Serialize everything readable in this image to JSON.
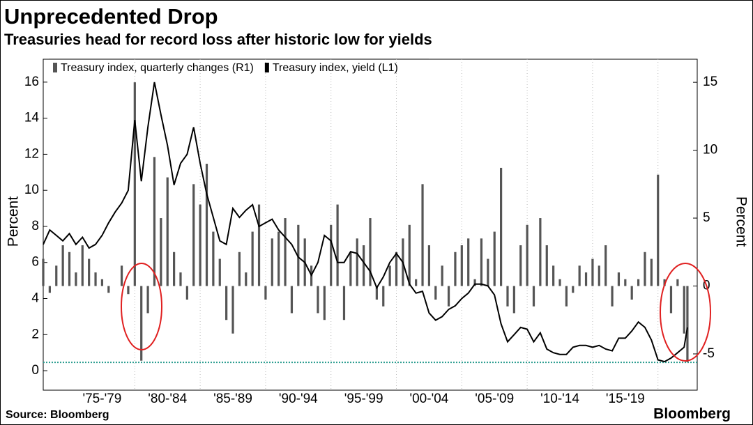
{
  "chart_data": {
    "type": "bar-line",
    "title": "Unprecedented Drop",
    "subtitle": "Treasuries head for record loss after historic low for yields",
    "source": "Source: Bloomberg",
    "brand": "Bloomberg",
    "ylabel": "Percent",
    "y2label": "Percent",
    "x": [
      1973,
      1973.5,
      1974,
      1974.5,
      1975,
      1975.5,
      1976,
      1976.5,
      1977,
      1977.5,
      1978,
      1978.5,
      1979,
      1979.5,
      1980,
      1980.5,
      1981,
      1981.5,
      1982,
      1982.5,
      1983,
      1983.5,
      1984,
      1984.5,
      1985,
      1985.5,
      1986,
      1986.5,
      1987,
      1987.5,
      1988,
      1988.5,
      1989,
      1989.5,
      1990,
      1990.5,
      1991,
      1991.5,
      1992,
      1992.5,
      1993,
      1993.5,
      1994,
      1994.5,
      1995,
      1995.5,
      1996,
      1996.5,
      1997,
      1997.5,
      1998,
      1998.5,
      1999,
      1999.5,
      2000,
      2000.5,
      2001,
      2001.5,
      2002,
      2002.5,
      2003,
      2003.5,
      2004,
      2004.5,
      2005,
      2005.5,
      2006,
      2006.5,
      2007,
      2007.5,
      2008,
      2008.5,
      2009,
      2009.5,
      2010,
      2010.5,
      2011,
      2011.5,
      2012,
      2012.5,
      2013,
      2013.5,
      2014,
      2014.5,
      2015,
      2015.5,
      2016,
      2016.5,
      2017,
      2017.5,
      2018,
      2018.5,
      2019,
      2019.5,
      2020,
      2020.5,
      2021,
      2021.5,
      2022,
      2022.25
    ],
    "series": [
      {
        "name": "Treasury index, quarterly changes (R1)",
        "color": "#555555",
        "axis": "y2",
        "kind": "bar",
        "values": [
          2.0,
          -0.5,
          1.5,
          3.0,
          2.5,
          1.0,
          3.0,
          2.0,
          1.0,
          0.5,
          -0.5,
          0.0,
          1.5,
          -0.6,
          15.0,
          -5.5,
          -2.0,
          9.5,
          5.0,
          8.0,
          2.5,
          1.0,
          -1.0,
          7.5,
          6.0,
          9.0,
          4.0,
          2.0,
          -2.5,
          -3.5,
          2.5,
          1.0,
          4.0,
          6.0,
          -1.0,
          3.5,
          4.0,
          5.0,
          -2.0,
          4.5,
          3.5,
          1.5,
          -2.0,
          -2.5,
          4.5,
          6.0,
          -2.5,
          2.5,
          3.5,
          3.0,
          5.0,
          -1.0,
          -1.5,
          1.5,
          2.5,
          3.5,
          4.5,
          0.5,
          7.5,
          3.0,
          -1.0,
          1.5,
          -1.5,
          2.5,
          3.0,
          3.5,
          0.5,
          3.5,
          2.0,
          4.0,
          8.7,
          -1.5,
          -2.0,
          3.0,
          4.5,
          -1.5,
          5.0,
          3.0,
          1.5,
          0.5,
          -1.5,
          -0.5,
          1.5,
          1.0,
          2.0,
          1.5,
          3.0,
          -1.5,
          1.0,
          0.5,
          -1.0,
          0.5,
          2.5,
          2.0,
          8.2,
          0.5,
          -2.0,
          0.5,
          -3.5,
          -5.6
        ]
      },
      {
        "name": "Treasury index, yield (L1)",
        "color": "#000000",
        "axis": "y",
        "kind": "line",
        "values": [
          7.0,
          7.8,
          7.5,
          7.2,
          7.6,
          7.0,
          7.4,
          6.8,
          7.0,
          7.5,
          8.2,
          8.8,
          9.3,
          10.0,
          13.9,
          10.5,
          13.5,
          16.0,
          14.2,
          12.5,
          10.3,
          11.5,
          12.0,
          13.5,
          11.5,
          9.8,
          8.5,
          7.2,
          7.0,
          9.0,
          8.5,
          8.9,
          9.2,
          8.0,
          8.2,
          8.4,
          7.8,
          7.4,
          7.0,
          6.3,
          6.0,
          5.3,
          6.0,
          7.5,
          7.2,
          6.0,
          6.0,
          6.6,
          6.5,
          6.0,
          5.5,
          4.6,
          5.2,
          6.0,
          6.5,
          6.0,
          4.8,
          4.3,
          4.4,
          3.2,
          2.8,
          3.0,
          3.4,
          3.6,
          4.0,
          4.3,
          4.8,
          4.8,
          4.7,
          4.2,
          2.6,
          1.6,
          2.0,
          2.4,
          2.3,
          1.6,
          2.1,
          1.2,
          1.0,
          0.9,
          0.9,
          1.3,
          1.4,
          1.4,
          1.3,
          1.4,
          1.2,
          1.1,
          1.8,
          1.8,
          2.2,
          2.7,
          2.4,
          1.7,
          0.6,
          0.5,
          0.7,
          1.0,
          1.3,
          2.4
        ]
      }
    ],
    "reference_line": {
      "value": 0.46,
      "color": "#2a9d8f"
    },
    "xlim": [
      1973,
      2023
    ],
    "xticks": [
      {
        "value": 1977.5,
        "label": "'75-'79"
      },
      {
        "value": 1982.5,
        "label": "'80-'84"
      },
      {
        "value": 1987.5,
        "label": "'85-'89"
      },
      {
        "value": 1992.5,
        "label": "'90-'94"
      },
      {
        "value": 1997.5,
        "label": "'95-'99"
      },
      {
        "value": 2002.5,
        "label": "'00-'04"
      },
      {
        "value": 2007.5,
        "label": "'05-'09"
      },
      {
        "value": 2012.5,
        "label": "'10-'14"
      },
      {
        "value": 2017.5,
        "label": "'15-'19"
      }
    ],
    "xgrid": [
      1980,
      1985,
      1990,
      1995,
      2000,
      2005,
      2010,
      2015,
      2020
    ],
    "ylim": [
      -1.08,
      17.27
    ],
    "yticks": [
      0,
      2,
      4,
      6,
      8,
      10,
      12,
      14,
      16
    ],
    "y2lim": [
      -7.67,
      16.7
    ],
    "y2ticks": [
      -5,
      0,
      5,
      10,
      15
    ]
  }
}
